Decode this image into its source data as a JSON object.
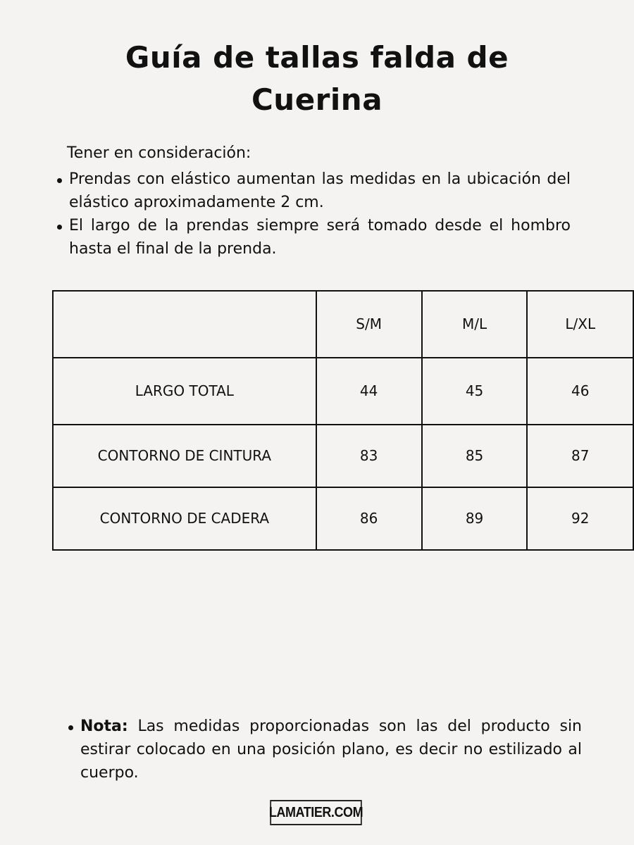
{
  "title_line1": "Guía de tallas falda de",
  "title_line2": "Cuerina",
  "intro": "Tener en consideración:",
  "bullets": [
    "Prendas con elástico aumentan las medidas en la ubicación del elástico aproximadamente 2 cm.",
    "El largo de la prendas siempre será tomado desde el hombro hasta el final de la prenda."
  ],
  "table": {
    "headers": [
      "",
      "S/M",
      "M/L",
      "L/XL"
    ],
    "rows": [
      {
        "label": "LARGO TOTAL",
        "values": [
          "44",
          "45",
          "46"
        ]
      },
      {
        "label": "CONTORNO DE CINTURA",
        "values": [
          "83",
          "85",
          "87"
        ]
      },
      {
        "label": "CONTORNO DE CADERA",
        "values": [
          "86",
          "89",
          "92"
        ]
      }
    ]
  },
  "note": {
    "label": "Nota:",
    "text": " Las medidas proporcionadas son las del producto sin estirar colocado en una posición plano, es decir no estilizado al cuerpo."
  },
  "logo": "LAMATIER.COM"
}
